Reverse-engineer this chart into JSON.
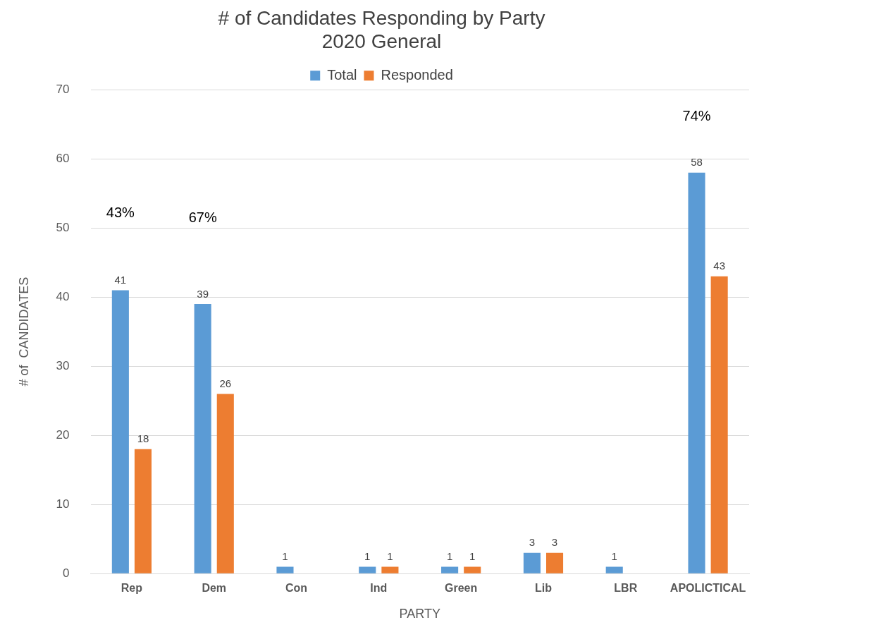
{
  "chart_data": {
    "type": "bar",
    "title": "# of Candidates Responding by Party\n2020 General",
    "xlabel": "PARTY",
    "ylabel": "# of  CANDIDATES",
    "categories": [
      "Rep",
      "Dem",
      "Con",
      "Ind",
      "Green",
      "Lib",
      "LBR",
      "APOLICTICAL"
    ],
    "series": [
      {
        "name": "Total",
        "color": "#5b9bd5",
        "values": [
          41,
          39,
          1,
          1,
          1,
          3,
          1,
          58
        ]
      },
      {
        "name": "Responded",
        "color": "#ed7d31",
        "values": [
          18,
          26,
          null,
          1,
          1,
          3,
          null,
          43
        ]
      }
    ],
    "ylim": [
      0,
      70
    ],
    "yticks": [
      0,
      10,
      20,
      30,
      40,
      50,
      60,
      70
    ],
    "grid": "y",
    "legend": "top",
    "data_labels": true,
    "annotations": [
      "43%",
      "67%",
      "74%"
    ]
  }
}
